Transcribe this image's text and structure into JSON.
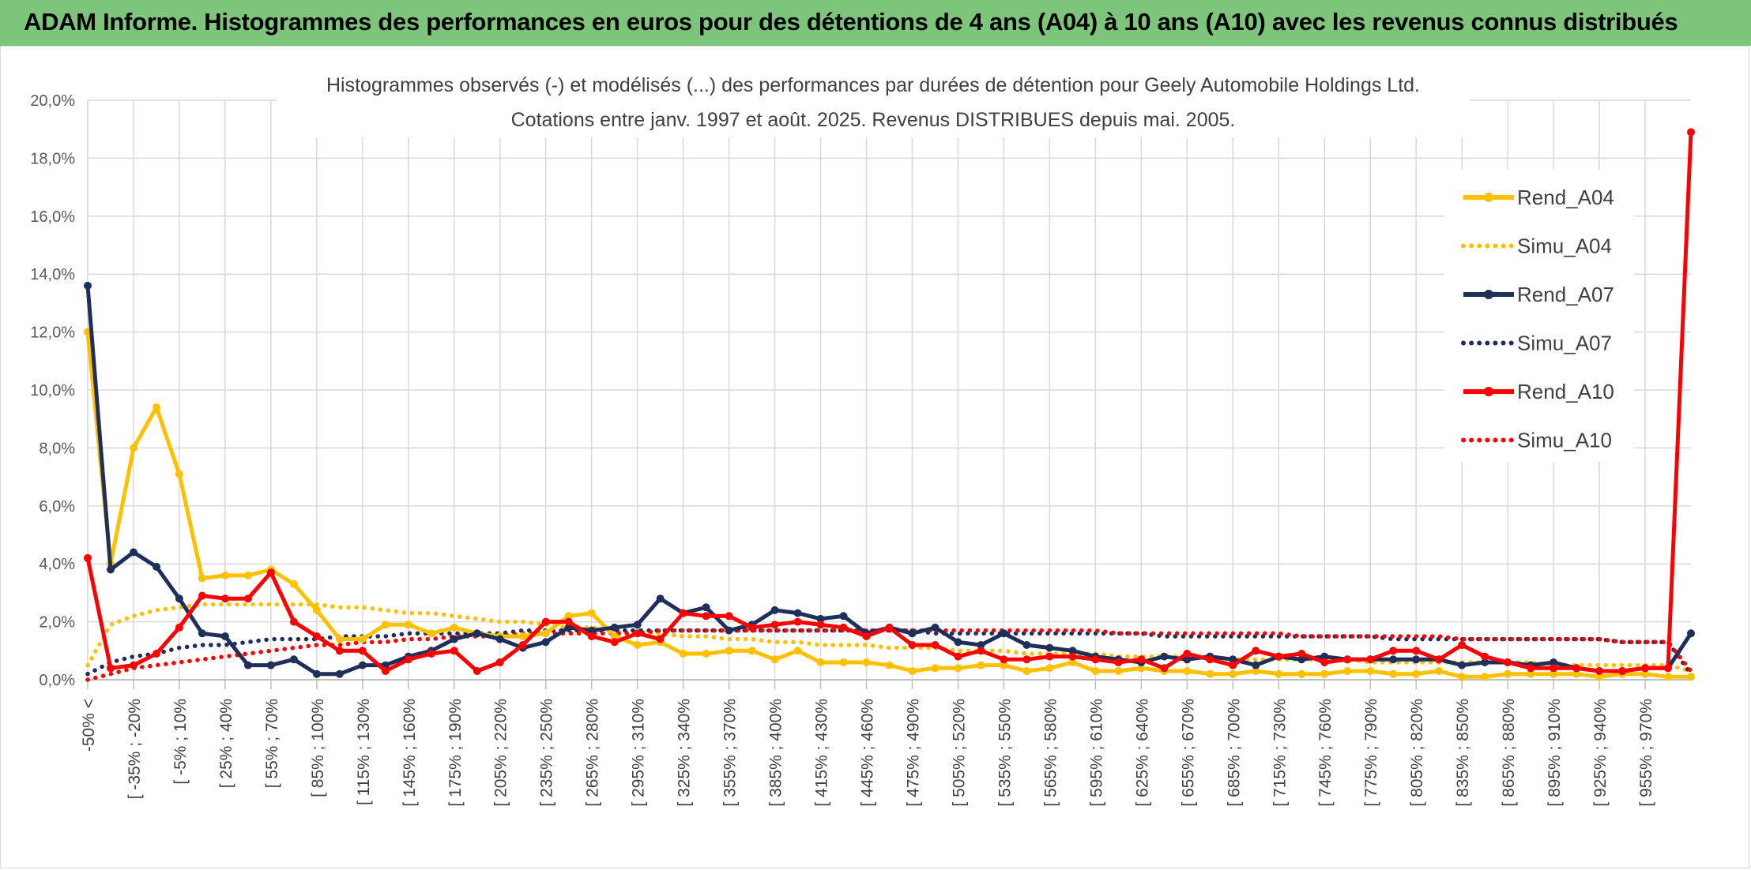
{
  "header": {
    "title": "ADAM Informe. Histogrammes des performances en euros pour des détentions de 4 ans (A04) à 10 ans (A10) avec les revenus connus distribués"
  },
  "chart_data": {
    "type": "line",
    "title": "Histogrammes observés (-) et modélisés (...) des performances par durées de détention pour Geely Automobile Holdings Ltd.",
    "subtitle": "Cotations entre janv. 1997 et août. 2025. Revenus DISTRIBUES depuis mai. 2005.",
    "ylim": [
      0,
      20
    ],
    "y_ticks": [
      "0,0%",
      "2,0%",
      "4,0%",
      "6,0%",
      "8,0%",
      "10,0%",
      "12,0%",
      "14,0%",
      "16,0%",
      "18,0%",
      "20,0%"
    ],
    "x_tick_labels": [
      "-50% <",
      "[ -35% ; -20%",
      "[ -5% ; 10%",
      "[ 25% ; 40%",
      "[ 55% ; 70%",
      "[ 85% ; 100%",
      "[ 115% ; 130%",
      "[ 145% ; 160%",
      "[ 175% ; 190%",
      "[ 205% ; 220%",
      "[ 235% ; 250%",
      "[ 265% ; 280%",
      "[ 295% ; 310%",
      "[ 325% ; 340%",
      "[ 355% ; 370%",
      "[ 385% ; 400%",
      "[ 415% ; 430%",
      "[ 445% ; 460%",
      "[ 475% ; 490%",
      "[ 505% ; 520%",
      "[ 535% ; 550%",
      "[ 565% ; 580%",
      "[ 595% ; 610%",
      "[ 625% ; 640%",
      "[ 655% ; 670%",
      "[ 685% ; 700%",
      "[ 715% ; 730%",
      "[ 745% ; 760%",
      "[ 775% ; 790%",
      "[ 805% ; 820%",
      "[ 835% ; 850%",
      "[ 865% ; 880%",
      "[ 895% ; 910%",
      "[ 925% ; 940%",
      "[ 955% ; 970%"
    ],
    "n_points": 71,
    "grid": true,
    "legend_position": "right",
    "series": [
      {
        "name": "Rend_A04",
        "color": "#ffc000",
        "style": "solid",
        "values": [
          12.0,
          4.0,
          8.0,
          9.4,
          7.1,
          3.5,
          3.6,
          3.6,
          3.8,
          3.3,
          2.4,
          1.4,
          1.4,
          1.9,
          1.9,
          1.6,
          1.8,
          1.6,
          1.5,
          1.5,
          1.6,
          2.2,
          2.3,
          1.5,
          1.2,
          1.3,
          0.9,
          0.9,
          1.0,
          1.0,
          0.7,
          1.0,
          0.6,
          0.6,
          0.6,
          0.5,
          0.3,
          0.4,
          0.4,
          0.5,
          0.5,
          0.3,
          0.4,
          0.6,
          0.3,
          0.3,
          0.4,
          0.3,
          0.3,
          0.2,
          0.2,
          0.3,
          0.2,
          0.2,
          0.2,
          0.3,
          0.3,
          0.2,
          0.2,
          0.3,
          0.1,
          0.1,
          0.2,
          0.2,
          0.2,
          0.2,
          0.1,
          0.2,
          0.2,
          0.1,
          0.1
        ]
      },
      {
        "name": "Simu_A04",
        "color": "#ffc000",
        "style": "dotted",
        "values": [
          0.5,
          1.9,
          2.2,
          2.4,
          2.5,
          2.6,
          2.6,
          2.6,
          2.6,
          2.6,
          2.6,
          2.5,
          2.5,
          2.4,
          2.3,
          2.3,
          2.2,
          2.1,
          2.0,
          2.0,
          1.9,
          1.8,
          1.8,
          1.7,
          1.6,
          1.6,
          1.5,
          1.5,
          1.4,
          1.4,
          1.3,
          1.3,
          1.2,
          1.2,
          1.2,
          1.1,
          1.1,
          1.1,
          1.0,
          1.0,
          1.0,
          0.9,
          0.9,
          0.9,
          0.9,
          0.8,
          0.8,
          0.8,
          0.8,
          0.8,
          0.7,
          0.7,
          0.7,
          0.7,
          0.7,
          0.7,
          0.6,
          0.6,
          0.6,
          0.6,
          0.6,
          0.6,
          0.6,
          0.6,
          0.5,
          0.5,
          0.5,
          0.5,
          0.5,
          0.5,
          0.3
        ]
      },
      {
        "name": "Rend_A07",
        "color": "#1f2f5c",
        "style": "solid",
        "values": [
          13.6,
          3.8,
          4.4,
          3.9,
          2.8,
          1.6,
          1.5,
          0.5,
          0.5,
          0.7,
          0.2,
          0.2,
          0.5,
          0.5,
          0.8,
          1.0,
          1.4,
          1.6,
          1.4,
          1.1,
          1.3,
          1.8,
          1.7,
          1.8,
          1.9,
          2.8,
          2.3,
          2.5,
          1.7,
          1.9,
          2.4,
          2.3,
          2.1,
          2.2,
          1.6,
          1.8,
          1.6,
          1.8,
          1.3,
          1.2,
          1.6,
          1.2,
          1.1,
          1.0,
          0.8,
          0.7,
          0.6,
          0.8,
          0.7,
          0.8,
          0.7,
          0.5,
          0.8,
          0.7,
          0.8,
          0.7,
          0.7,
          0.7,
          0.7,
          0.7,
          0.5,
          0.6,
          0.6,
          0.5,
          0.6,
          0.4,
          0.3,
          0.3,
          0.4,
          0.4,
          1.6
        ]
      },
      {
        "name": "Simu_A07",
        "color": "#1f2f5c",
        "style": "dotted",
        "values": [
          0.2,
          0.6,
          0.8,
          0.9,
          1.1,
          1.2,
          1.2,
          1.3,
          1.4,
          1.4,
          1.4,
          1.5,
          1.5,
          1.5,
          1.6,
          1.6,
          1.6,
          1.6,
          1.6,
          1.7,
          1.7,
          1.7,
          1.7,
          1.7,
          1.7,
          1.7,
          1.7,
          1.7,
          1.7,
          1.7,
          1.7,
          1.7,
          1.7,
          1.7,
          1.7,
          1.7,
          1.7,
          1.6,
          1.6,
          1.6,
          1.6,
          1.6,
          1.6,
          1.6,
          1.6,
          1.6,
          1.6,
          1.5,
          1.5,
          1.5,
          1.5,
          1.5,
          1.5,
          1.5,
          1.5,
          1.5,
          1.5,
          1.4,
          1.4,
          1.4,
          1.4,
          1.4,
          1.4,
          1.4,
          1.4,
          1.4,
          1.4,
          1.3,
          1.3,
          1.3,
          0.2
        ]
      },
      {
        "name": "Rend_A10",
        "color": "#ff0000",
        "style": "solid",
        "values": [
          4.2,
          0.4,
          0.5,
          0.9,
          1.8,
          2.9,
          2.8,
          2.8,
          3.7,
          2.0,
          1.5,
          1.0,
          1.0,
          0.3,
          0.7,
          0.9,
          1.0,
          0.3,
          0.6,
          1.2,
          2.0,
          2.0,
          1.5,
          1.3,
          1.6,
          1.4,
          2.3,
          2.2,
          2.2,
          1.8,
          1.9,
          2.0,
          1.9,
          1.8,
          1.5,
          1.8,
          1.2,
          1.2,
          0.8,
          1.0,
          0.7,
          0.7,
          0.8,
          0.8,
          0.7,
          0.6,
          0.7,
          0.4,
          0.9,
          0.7,
          0.5,
          1.0,
          0.8,
          0.9,
          0.6,
          0.7,
          0.7,
          1.0,
          1.0,
          0.7,
          1.2,
          0.8,
          0.6,
          0.4,
          0.4,
          0.4,
          0.3,
          0.3,
          0.4,
          0.4,
          18.9
        ]
      },
      {
        "name": "Simu_A10",
        "color": "#ff0000",
        "style": "dotted",
        "values": [
          0.0,
          0.2,
          0.4,
          0.5,
          0.6,
          0.7,
          0.8,
          0.9,
          1.0,
          1.1,
          1.2,
          1.2,
          1.3,
          1.3,
          1.4,
          1.4,
          1.5,
          1.5,
          1.5,
          1.6,
          1.6,
          1.6,
          1.6,
          1.6,
          1.6,
          1.7,
          1.7,
          1.7,
          1.7,
          1.7,
          1.7,
          1.7,
          1.7,
          1.7,
          1.7,
          1.7,
          1.7,
          1.7,
          1.7,
          1.7,
          1.7,
          1.7,
          1.7,
          1.7,
          1.7,
          1.6,
          1.6,
          1.6,
          1.6,
          1.6,
          1.6,
          1.6,
          1.6,
          1.5,
          1.5,
          1.5,
          1.5,
          1.5,
          1.5,
          1.5,
          1.4,
          1.4,
          1.4,
          1.4,
          1.4,
          1.4,
          1.4,
          1.3,
          1.3,
          1.3,
          0.3
        ]
      }
    ]
  }
}
